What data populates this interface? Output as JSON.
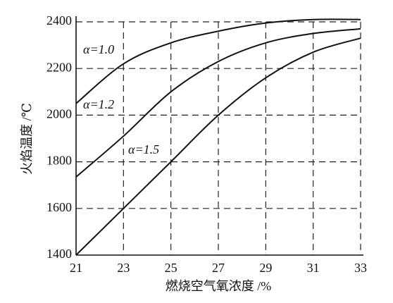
{
  "chart_data": {
    "type": "line",
    "x_label": "燃烧空气氧浓度 /%",
    "y_label": "火焰温度 /℃",
    "x": [
      21,
      23,
      25,
      27,
      29,
      31,
      33
    ],
    "series": [
      {
        "name": "α=1.0",
        "color": "#111111",
        "values": [
          2050,
          2220,
          2310,
          2360,
          2395,
          2410,
          2410
        ]
      },
      {
        "name": "α=1.2",
        "color": "#111111",
        "values": [
          1735,
          1910,
          2100,
          2230,
          2310,
          2350,
          2370
        ]
      },
      {
        "name": "α=1.5",
        "color": "#111111",
        "values": [
          1400,
          1600,
          1800,
          2000,
          2160,
          2270,
          2330
        ]
      }
    ],
    "xlim": [
      21,
      33
    ],
    "xticks": [
      21,
      23,
      25,
      27,
      29,
      31,
      33
    ],
    "ylim": [
      1400,
      2400
    ],
    "yticks": [
      1400,
      1600,
      1800,
      2000,
      2200,
      2400
    ],
    "grid": true
  }
}
